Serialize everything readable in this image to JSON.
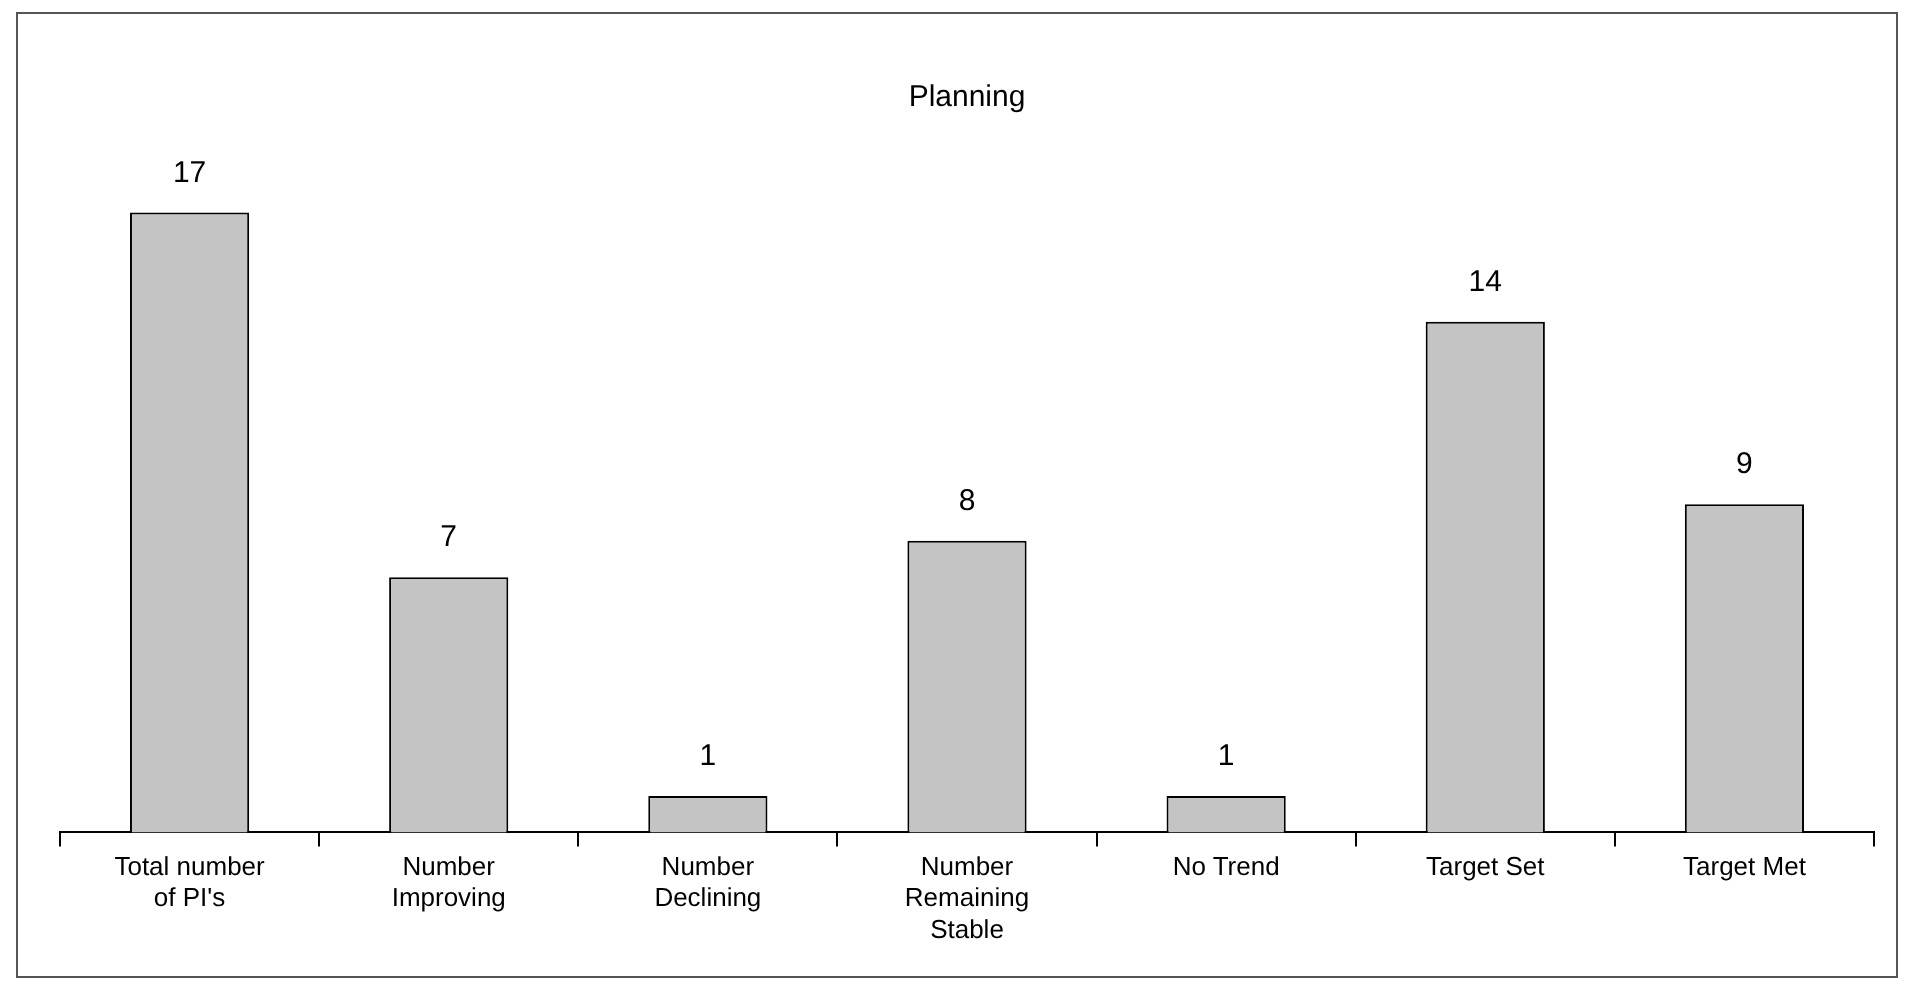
{
  "chart_data": {
    "type": "bar",
    "title": "Planning",
    "categories": [
      "Total number of PI's",
      "Number Improving",
      "Number Declining",
      "Number Remaining Stable",
      "No Trend",
      "Target Set",
      "Target Met"
    ],
    "values": [
      17,
      7,
      1,
      8,
      1,
      14,
      9
    ],
    "color": "#c4c4c4",
    "data_labels": true
  }
}
